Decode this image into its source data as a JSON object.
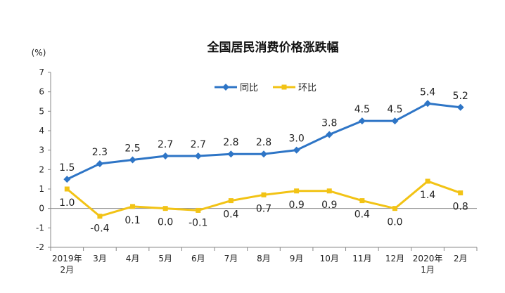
{
  "chart_data": {
    "type": "line",
    "title": "全国居民消费价格涨跌幅",
    "ylabel": "(%)",
    "ylim": [
      -2,
      7
    ],
    "yticks": [
      7,
      6,
      5,
      4,
      3,
      2,
      1,
      0,
      -1,
      -2
    ],
    "categories": [
      [
        "2019年",
        "2月"
      ],
      [
        "3月"
      ],
      [
        "4月"
      ],
      [
        "5月"
      ],
      [
        "6月"
      ],
      [
        "7月"
      ],
      [
        "8月"
      ],
      [
        "9月"
      ],
      [
        "10月"
      ],
      [
        "11月"
      ],
      [
        "12月"
      ],
      [
        "2020年",
        "1月"
      ],
      [
        "2月"
      ]
    ],
    "grid": false,
    "legend_position": "top",
    "series": [
      {
        "name": "同比",
        "color": "#2e75c6",
        "marker": "diamond",
        "values": [
          1.5,
          2.3,
          2.5,
          2.7,
          2.7,
          2.8,
          2.8,
          3.0,
          3.8,
          4.5,
          4.5,
          5.4,
          5.2
        ],
        "labels": [
          "1.5",
          "2.3",
          "2.5",
          "2.7",
          "2.7",
          "2.8",
          "2.8",
          "3.0",
          "3.8",
          "4.5",
          "4.5",
          "5.4",
          "5.2"
        ]
      },
      {
        "name": "环比",
        "color": "#f2c315",
        "marker": "square",
        "values": [
          1.0,
          -0.4,
          0.1,
          0.0,
          -0.1,
          0.4,
          0.7,
          0.9,
          0.9,
          0.4,
          0.0,
          1.4,
          0.8
        ],
        "labels": [
          "1.0",
          "-0.4",
          "0.1",
          "0.0",
          "-0.1",
          "0.4",
          "0.7",
          "0.9",
          "0.9",
          "0.4",
          "0.0",
          "1.4",
          "0.8"
        ]
      }
    ]
  }
}
